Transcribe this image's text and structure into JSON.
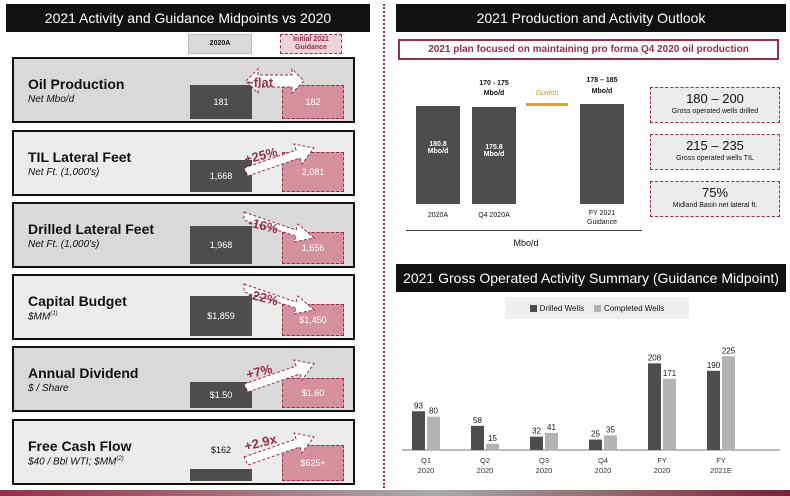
{
  "left": {
    "header": "2021 Activity and Guidance Midpoints vs 2020",
    "col_2020a": "2020A",
    "col_guidance": "Initial 2021 Guidance",
    "panels": [
      {
        "title": "Oil Production",
        "subtitle": "Net Mbo/d",
        "value_2020a": "181",
        "value_guidance": "182",
        "change": "~flat"
      },
      {
        "title": "TIL Lateral Feet",
        "subtitle": "Net Ft. (1,000's)",
        "value_2020a": "1,668",
        "value_guidance": "2,081",
        "change": "+25%"
      },
      {
        "title": "Drilled Lateral Feet",
        "subtitle": "Net Ft. (1,000's)",
        "value_2020a": "1,968",
        "value_guidance": "1,656",
        "change": "-16%"
      },
      {
        "title": "Capital Budget",
        "subtitle": "$MM",
        "subtitle_sup": "(1)",
        "value_2020a": "$1,859",
        "value_guidance": "$1,450",
        "change": "-22%"
      },
      {
        "title": "Annual Dividend",
        "subtitle": "$ / Share",
        "value_2020a": "$1.50",
        "value_guidance": "$1.60",
        "change": "+7%"
      },
      {
        "title": "Free Cash Flow",
        "subtitle": "$40 / Bbl WTI; $MM",
        "subtitle_sup": "(2)",
        "value_2020a": "$162",
        "value_guidance": "$625+",
        "change": "+2.9x"
      }
    ]
  },
  "outlook": {
    "header": "2021 Production and Activity Outlook",
    "banner": "2021 plan focused on maintaining pro forma Q4 2020 oil production",
    "bar1_value": "180.8",
    "bar1_unit": "Mbo/d",
    "bar1_label": "2020A",
    "bar2_value": "175.8",
    "bar2_unit": "Mbo/d",
    "bar2_label": "Q4 2020A",
    "bar2_top_range": "170 - 175",
    "bar2_top_unit": "Mbo/d",
    "guidon_label": "Guidon",
    "bar3_top_range": "178 – 185",
    "bar3_top_unit": "Mbo/d",
    "bar3_label_1": "FY 2021",
    "bar3_label_2": "Guidance",
    "axis_label": "Mbo/d",
    "boxes": [
      {
        "big": "180 – 200",
        "small": "Gross operated wells drilled"
      },
      {
        "big": "215 – 235",
        "small": "Gross operated wells TIL"
      },
      {
        "big": "75%",
        "small": "Midland Basin net lateral ft."
      }
    ]
  },
  "summary": {
    "header": "2021 Gross Operated Activity Summary (Guidance Midpoint)"
  },
  "colors": {
    "maroon": "#9b2d49",
    "dark_bar": "#4d4d4b",
    "light_bar": "#b3b3b3",
    "pink": "#d4909e",
    "gold": "#d9a520"
  },
  "chart_data": {
    "type": "bar",
    "title": "2021 Gross Operated Activity Summary (Guidance Midpoint)",
    "categories": [
      "Q1 2020",
      "Q2 2020",
      "Q3 2020",
      "Q4 2020",
      "FY 2020",
      "FY 2021E"
    ],
    "category_lines": [
      [
        "Q1",
        "2020"
      ],
      [
        "Q2",
        "2020"
      ],
      [
        "Q3",
        "2020"
      ],
      [
        "Q4",
        "2020"
      ],
      [
        "FY",
        "2020"
      ],
      [
        "FY",
        "2021E"
      ]
    ],
    "series": [
      {
        "name": "Drilled Wells",
        "values": [
          93,
          58,
          32,
          25,
          208,
          190
        ],
        "color": "#4d4d4b"
      },
      {
        "name": "Completed Wells",
        "values": [
          80,
          15,
          41,
          35,
          171,
          225
        ],
        "color": "#b3b3b3"
      }
    ],
    "ylim": [
      0,
      240
    ],
    "legend": "top",
    "grid": false
  }
}
